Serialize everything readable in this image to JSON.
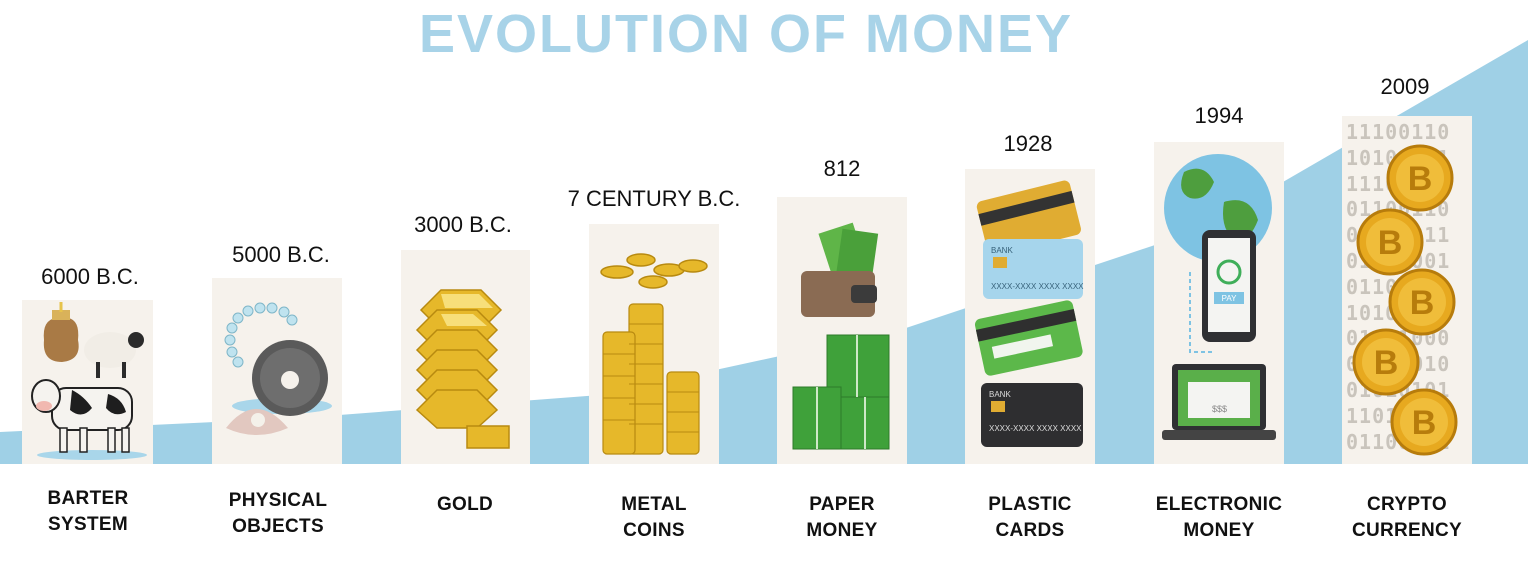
{
  "title": "EVOLUTION OF MONEY",
  "colors": {
    "title": "#a8d3e8",
    "ramp": "#9fd0e6",
    "card": "#f6f2ec"
  },
  "stages": [
    {
      "year": "6000 B.C.",
      "label_line1": "BARTER",
      "label_line2": "SYSTEM",
      "icon": "barter-animals-icon"
    },
    {
      "year": "5000 B.C.",
      "label_line1": "PHYSICAL",
      "label_line2": "OBJECTS",
      "icon": "stone-pearl-icon"
    },
    {
      "year": "3000 B.C.",
      "label_line1": "GOLD",
      "label_line2": "",
      "icon": "gold-bars-icon"
    },
    {
      "year": "7 CENTURY B.C.",
      "label_line1": "METAL",
      "label_line2": "COINS",
      "icon": "coin-stacks-icon"
    },
    {
      "year": "812",
      "label_line1": "PAPER",
      "label_line2": "MONEY",
      "icon": "wallet-banknotes-icon"
    },
    {
      "year": "1928",
      "label_line1": "PLASTIC",
      "label_line2": "CARDS",
      "icon": "credit-cards-icon"
    },
    {
      "year": "1994",
      "label_line1": "ELECTRONIC",
      "label_line2": "MONEY",
      "icon": "globe-phone-laptop-icon"
    },
    {
      "year": "2009",
      "label_line1": "CRYPTO",
      "label_line2": "CURRENCY",
      "icon": "bitcoin-icon"
    }
  ],
  "card_texts": {
    "bank": "BANK",
    "card_number": "XXXX-XXXX XXXX XXXX",
    "pay": "PAY",
    "amount": "$$$",
    "bitcoin_symbol": "B"
  },
  "binary_rows": [
    "11100110",
    "10101001",
    "11100110",
    "01100110",
    "01110011",
    "01011001",
    "01101010",
    "10100101",
    "01011000",
    "01101010",
    "01010101",
    "11010010",
    "01100101"
  ]
}
